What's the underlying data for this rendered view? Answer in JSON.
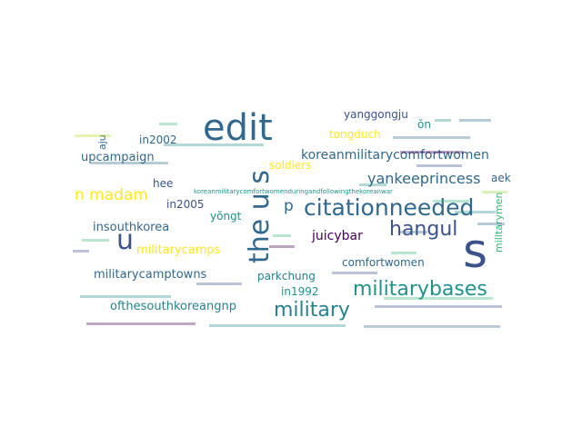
{
  "image": {
    "type": "word cloud",
    "background": "#ffffff",
    "palette": {
      "purple": "#440154",
      "indigo": "#3b528b",
      "blue": "#31688e",
      "teal": "#21918c",
      "green": "#35b779",
      "lime": "#90d743",
      "yellow": "#fde725"
    }
  },
  "words": [
    {
      "text": "edit",
      "color": "#31688e",
      "size": 40
    },
    {
      "text": "s",
      "color": "#3b528b",
      "size": 52
    },
    {
      "text": "u",
      "color": "#3b528b",
      "size": 30
    },
    {
      "text": "the u s",
      "color": "#31688e",
      "size": 30
    },
    {
      "text": "citationneeded",
      "color": "#31688e",
      "size": 25
    },
    {
      "text": "military",
      "color": "#26828e",
      "size": 22
    },
    {
      "text": "militarybases",
      "color": "#21918c",
      "size": 22
    },
    {
      "text": "hangul",
      "color": "#3b528b",
      "size": 22
    },
    {
      "text": "n madam",
      "color": "#fde725",
      "size": 17
    },
    {
      "text": "p",
      "color": "#31688e",
      "size": 17
    },
    {
      "text": "yankeeprincess",
      "color": "#31688e",
      "size": 16
    },
    {
      "text": "koreanmilitarycomfortwomen",
      "color": "#31688e",
      "size": 14
    },
    {
      "text": "upcampaign",
      "color": "#31688e",
      "size": 13
    },
    {
      "text": "militarycamps",
      "color": "#fde725",
      "size": 13
    },
    {
      "text": "militarycamptowns",
      "color": "#31688e",
      "size": 13
    },
    {
      "text": "ofthesouthkoreangnp",
      "color": "#26828e",
      "size": 13
    },
    {
      "text": "insouthkorea",
      "color": "#31688e",
      "size": 13
    },
    {
      "text": "juicybar",
      "color": "#440154",
      "size": 14
    },
    {
      "text": "comfortwomen",
      "color": "#31688e",
      "size": 12
    },
    {
      "text": "parkchung",
      "color": "#26828e",
      "size": 12
    },
    {
      "text": "in1992",
      "color": "#21918c",
      "size": 12
    },
    {
      "text": "yanggongju",
      "color": "#3b528b",
      "size": 12
    },
    {
      "text": "tongduch",
      "color": "#fde725",
      "size": 12
    },
    {
      "text": "soldiers",
      "color": "#fde725",
      "size": 12
    },
    {
      "text": "in2002",
      "color": "#31688e",
      "size": 12
    },
    {
      "text": "in2005",
      "color": "#3b528b",
      "size": 12
    },
    {
      "text": "hee",
      "color": "#3b528b",
      "size": 12
    },
    {
      "text": "yŏngt",
      "color": "#21918c",
      "size": 12
    },
    {
      "text": "aek",
      "color": "#31688e",
      "size": 12
    },
    {
      "text": "ŏn",
      "color": "#21918c",
      "size": 12
    },
    {
      "text": "aju",
      "color": "#31688e",
      "size": 11
    },
    {
      "text": "militarymen",
      "color": "#35b779",
      "size": 11
    },
    {
      "text": "koreanmilitarycomfortwomenduringandfollowingthekoreanwar",
      "color": "#21918c",
      "size": 7
    }
  ],
  "small_words": [
    "",
    "",
    "",
    "",
    "",
    "",
    "",
    "",
    "",
    "",
    "",
    "",
    "",
    "",
    "",
    "",
    "",
    "",
    "",
    "",
    "",
    "",
    "",
    "",
    "",
    "",
    "",
    ""
  ]
}
